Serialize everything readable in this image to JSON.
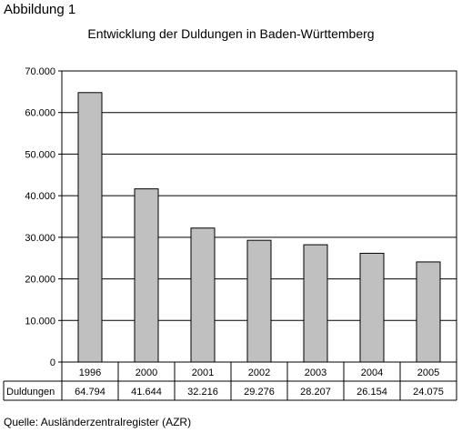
{
  "figure_label": "Abbildung 1",
  "source_note": "Quelle: Ausländerzentralregister (AZR)",
  "chart_data": {
    "type": "bar",
    "title": "Entwicklung der Duldungen in Baden-Württemberg",
    "categories": [
      "1996",
      "2000",
      "2001",
      "2002",
      "2003",
      "2004",
      "2005"
    ],
    "series": [
      {
        "name": "Duldungen",
        "values": [
          64794,
          41644,
          32216,
          29276,
          28207,
          26154,
          24075
        ],
        "labels": [
          "64.794",
          "41.644",
          "32.216",
          "29.276",
          "28.207",
          "26.154",
          "24.075"
        ],
        "color": "#c0c0c0"
      }
    ],
    "ylim": [
      0,
      70000
    ],
    "yticks": [
      "0",
      "10.000",
      "20.000",
      "30.000",
      "40.000",
      "50.000",
      "60.000",
      "70.000"
    ],
    "ytick_values": [
      0,
      10000,
      20000,
      30000,
      40000,
      50000,
      60000,
      70000
    ],
    "grid": true,
    "data_table": true,
    "xlabel": "",
    "ylabel": ""
  }
}
